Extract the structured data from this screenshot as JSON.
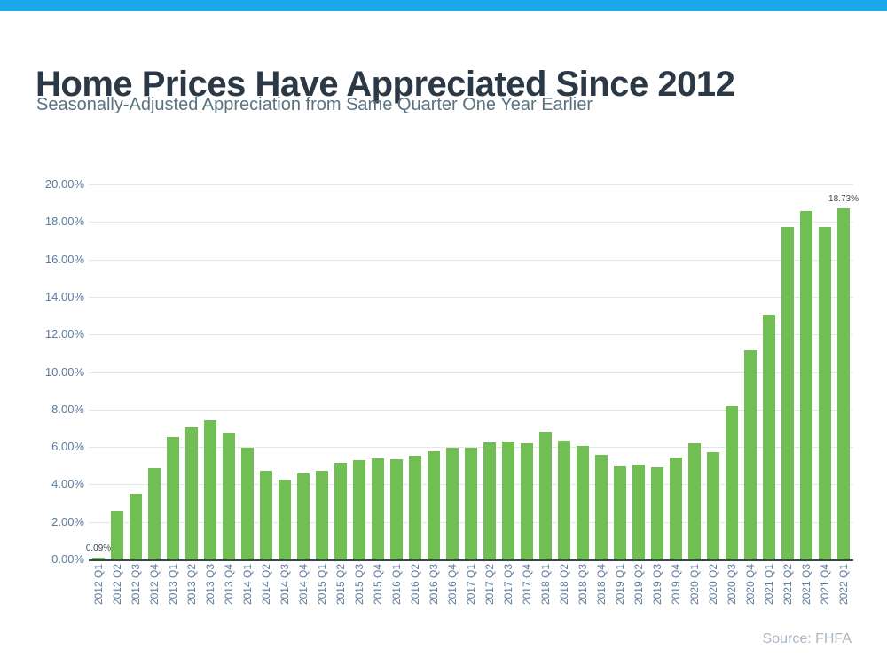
{
  "page": {
    "accent_bar_color": "#18a9ed",
    "background_color": "#ffffff"
  },
  "header": {
    "title": "Home Prices Have Appreciated Since 2012",
    "subtitle": "Seasonally-Adjusted Appreciation from Same Quarter One Year Earlier",
    "title_color": "#2b3947",
    "subtitle_color": "#5a7280"
  },
  "chart_data": {
    "type": "bar",
    "title": "Home Prices Have Appreciated Since 2012",
    "subtitle": "Seasonally-Adjusted Appreciation from Same Quarter One Year Earlier",
    "categories": [
      "2012 Q1",
      "2012 Q2",
      "2012 Q3",
      "2012 Q4",
      "2013 Q1",
      "2013 Q2",
      "2013 Q3",
      "2013 Q4",
      "2014 Q1",
      "2014 Q2",
      "2014 Q3",
      "2014 Q4",
      "2015 Q1",
      "2015 Q2",
      "2015 Q3",
      "2015 Q4",
      "2016 Q1",
      "2016 Q2",
      "2016 Q3",
      "2016 Q4",
      "2017 Q1",
      "2017 Q2",
      "2017 Q3",
      "2017 Q4",
      "2018 Q1",
      "2018 Q2",
      "2018 Q3",
      "2018 Q4",
      "2019 Q1",
      "2019 Q2",
      "2019 Q3",
      "2019 Q4",
      "2020 Q1",
      "2020 Q2",
      "2020 Q3",
      "2020 Q4",
      "2021 Q1",
      "2021 Q2",
      "2021 Q3",
      "2021 Q4",
      "2022 Q1"
    ],
    "values": [
      0.09,
      2.6,
      3.49,
      4.86,
      6.52,
      7.04,
      7.4,
      6.77,
      5.98,
      4.74,
      4.26,
      4.59,
      4.75,
      5.15,
      5.3,
      5.41,
      5.33,
      5.51,
      5.75,
      5.94,
      5.94,
      6.24,
      6.3,
      6.2,
      6.82,
      6.32,
      6.05,
      5.6,
      4.95,
      5.05,
      4.93,
      5.45,
      6.2,
      5.73,
      8.18,
      11.16,
      13.05,
      17.75,
      18.6,
      17.73,
      18.73
    ],
    "ytick_labels": [
      "0.00%",
      "2.00%",
      "4.00%",
      "6.00%",
      "8.00%",
      "10.00%",
      "12.00%",
      "14.00%",
      "16.00%",
      "18.00%",
      "20.00%"
    ],
    "ylim": [
      0,
      20
    ],
    "ytick_step": 2,
    "xlabel": "",
    "ylabel": "",
    "grid": "horizontal",
    "legend": "none",
    "bar_color": "#71be55",
    "axis_label_color": "#5d7b9d",
    "gridline_color": "#e4e6e8",
    "baseline_color": "#39444e",
    "annotation_color": "#3a4a57",
    "annotations": [
      {
        "index": 0,
        "text": "0.09%"
      },
      {
        "index": 40,
        "text": "18.73%"
      }
    ]
  },
  "footer": {
    "source": "Source: FHFA",
    "source_color": "#a9b6c2"
  }
}
